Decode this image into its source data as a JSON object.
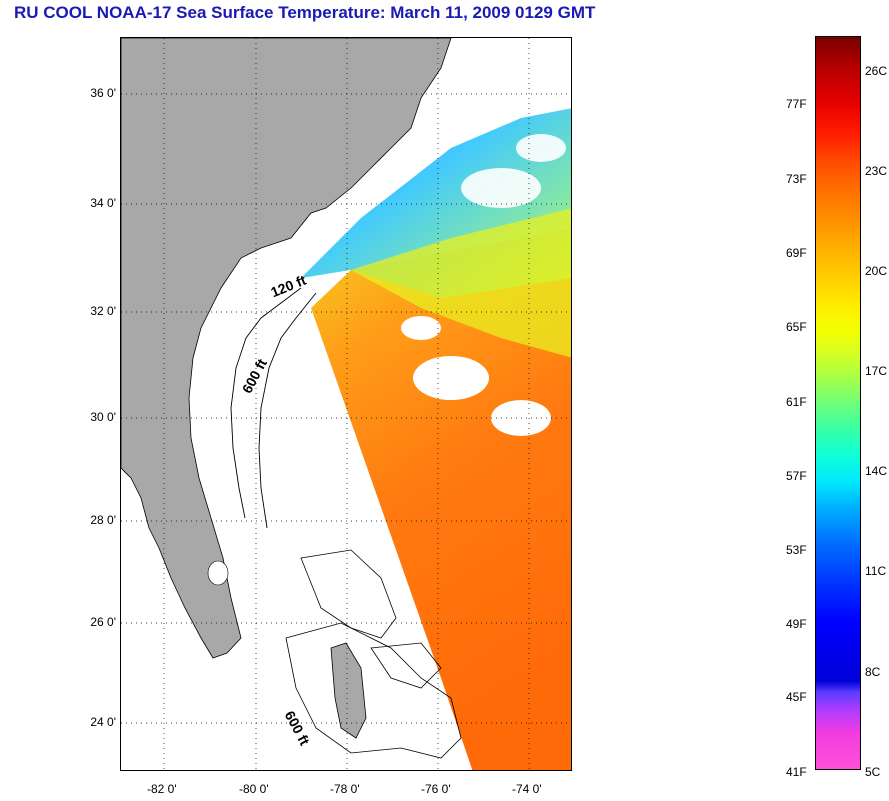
{
  "title": "RU COOL  NOAA-17  Sea Surface Temperature:  March 11, 2009 0129 GMT",
  "axes": {
    "lat_labels": [
      "36 0'",
      "34 0'",
      "32 0'",
      "30 0'",
      "28 0'",
      "26 0'",
      "24 0'"
    ],
    "lon_labels": [
      "-82 0'",
      "-80 0'",
      "-78 0'",
      "-76 0'",
      "-74 0'"
    ]
  },
  "colorbar": {
    "fahrenheit": [
      "77F",
      "73F",
      "69F",
      "65F",
      "61F",
      "57F",
      "53F",
      "49F",
      "45F",
      "41F"
    ],
    "celsius": [
      "26C",
      "23C",
      "20C",
      "17C",
      "14C",
      "11C",
      "8C",
      "5C"
    ]
  },
  "contours": {
    "label_120": "120 ft",
    "label_600_north": "600 ft",
    "label_600_south": "600 ft"
  },
  "colors": {
    "land": "#a8a8a8",
    "warm": "#ff7a10",
    "cool": "#ffd020",
    "cold": "#2060ff",
    "title": "#1a1ab4"
  }
}
